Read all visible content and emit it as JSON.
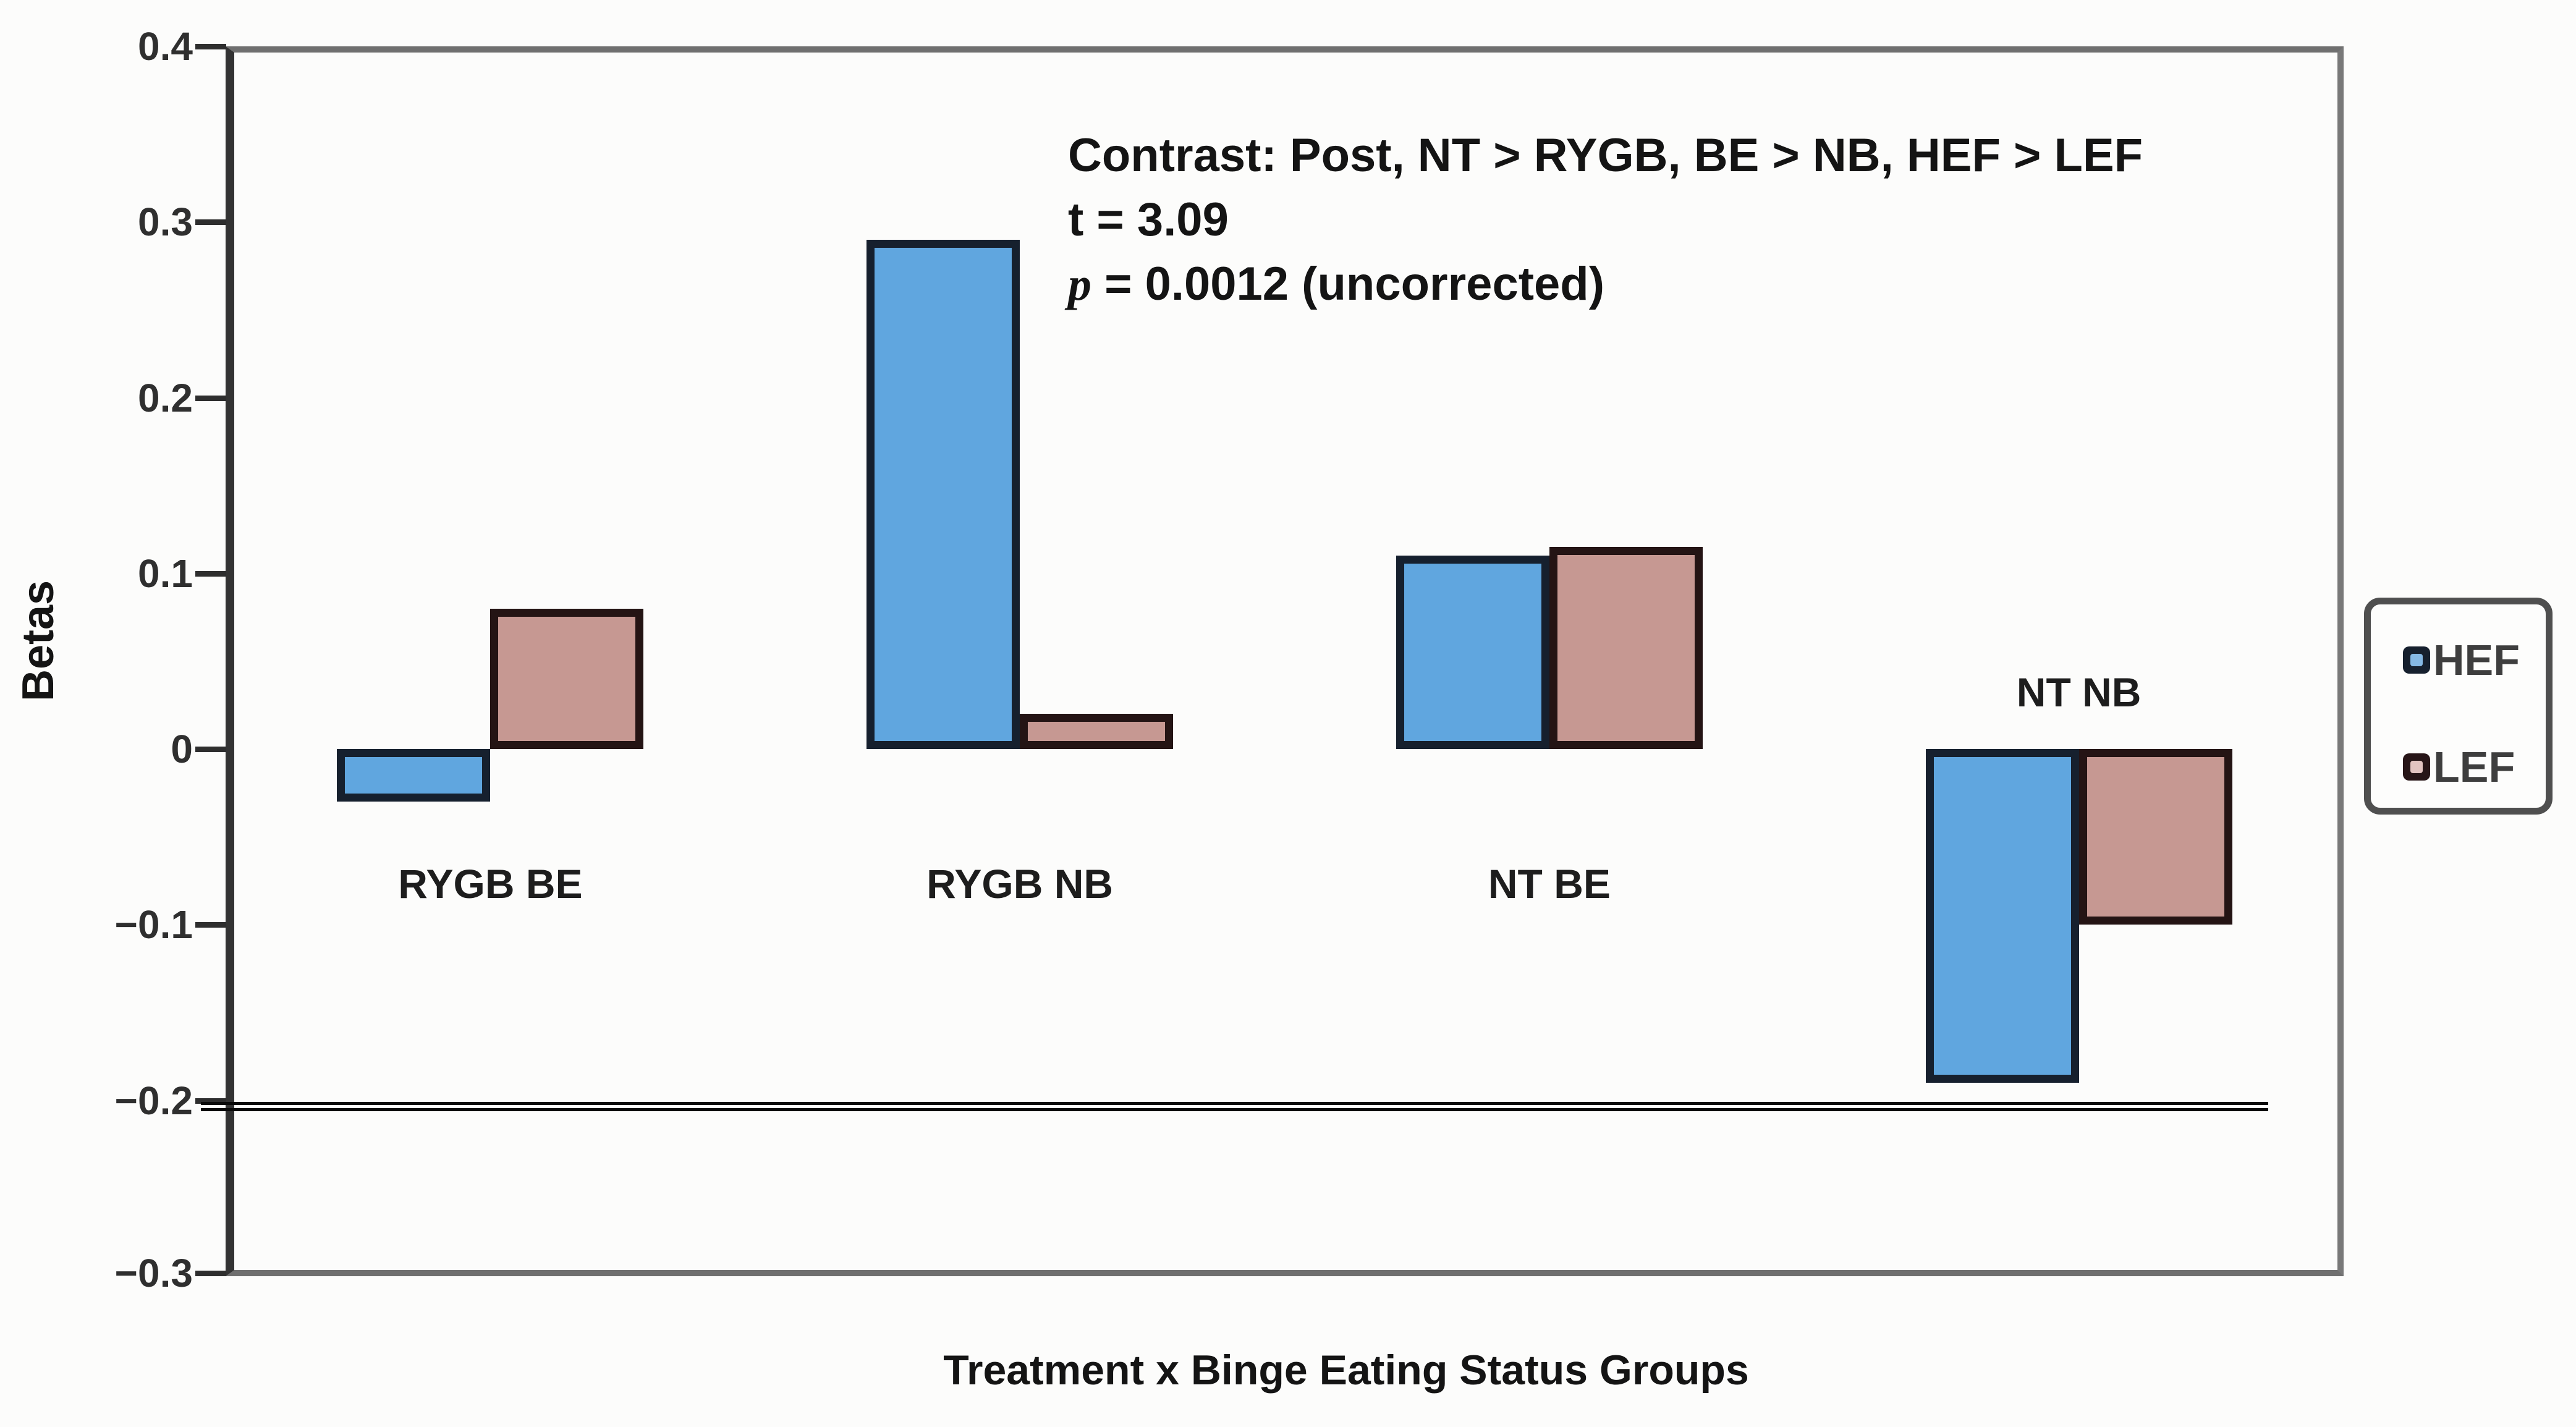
{
  "chart_data": {
    "type": "bar",
    "title": "",
    "xlabel": "Treatment x Binge Eating Status Groups",
    "ylabel": "Betas",
    "ylim": [
      -0.3,
      0.4
    ],
    "grid": false,
    "legend_position": "right-outside",
    "yticks": [
      {
        "value": 0.4,
        "label": "0.4"
      },
      {
        "value": 0.3,
        "label": "0.3"
      },
      {
        "value": 0.2,
        "label": "0.2"
      },
      {
        "value": 0.1,
        "label": "0.1"
      },
      {
        "value": 0,
        "label": "0"
      },
      {
        "value": -0.1,
        "label": "−0.1"
      },
      {
        "value": -0.2,
        "label": "−0.2"
      },
      {
        "value": -0.3,
        "label": "−0.3"
      }
    ],
    "categories": [
      "RYGB BE",
      "RYGB NB",
      "NT BE",
      "NT NB"
    ],
    "series": [
      {
        "name": "HEF",
        "fill": "#60a6df",
        "values": [
          -0.03,
          0.29,
          0.11,
          -0.19
        ]
      },
      {
        "name": "LEF",
        "fill": "#c69892",
        "values": [
          0.08,
          0.02,
          0.115,
          -0.1
        ]
      }
    ],
    "reference_line": {
      "value": -0.2,
      "style": "double",
      "color": "#0a0a0a"
    },
    "annotation": {
      "lines": [
        [
          {
            "text": "Contrast: Post, NT > RYGB, BE > NB, HEF > LEF",
            "italic": false
          }
        ],
        [
          {
            "text": "t = 3.09",
            "italic": false
          }
        ],
        [
          {
            "text": "p",
            "italic": true
          },
          {
            "text": " = 0.0012 (uncorrected)",
            "italic": false
          }
        ]
      ]
    },
    "legend": {
      "items": [
        {
          "label": "HEF",
          "swatch_outer": "#16202e",
          "swatch_inner": "#85b8e4"
        },
        {
          "label": "LEF",
          "swatch_outer": "#271517",
          "swatch_inner": "#e2c3c0"
        }
      ]
    }
  }
}
